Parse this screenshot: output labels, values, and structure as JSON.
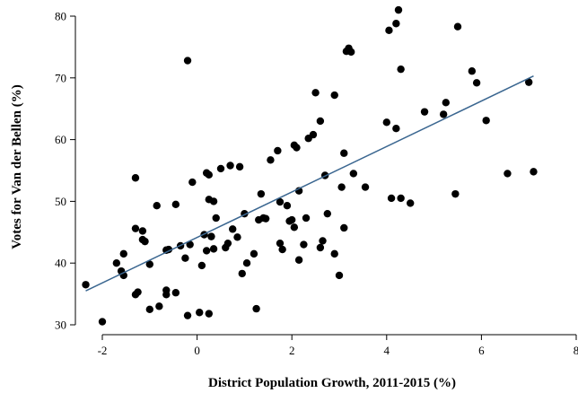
{
  "chart_data": {
    "type": "scatter",
    "xlabel": "District Population Growth, 2011-2015 (%)",
    "ylabel": "Votes for Van der Bellen (%)",
    "xlim": [
      -2.5,
      8
    ],
    "ylim": [
      30,
      81
    ],
    "xticks": [
      -2,
      0,
      2,
      4,
      6,
      8
    ],
    "yticks": [
      30,
      40,
      50,
      60,
      70,
      80
    ],
    "grid": false,
    "point_color": "#000000",
    "line_color": "#3a6690",
    "fit_line": {
      "x": [
        -2.35,
        7.1
      ],
      "y": [
        35.5,
        70.3
      ]
    },
    "points": [
      [
        -2.35,
        36.5
      ],
      [
        -2.0,
        30.5
      ],
      [
        -1.7,
        40.0
      ],
      [
        -1.6,
        38.7
      ],
      [
        -1.55,
        38.0
      ],
      [
        -1.55,
        41.5
      ],
      [
        -1.3,
        53.8
      ],
      [
        -1.3,
        45.6
      ],
      [
        -1.3,
        34.9
      ],
      [
        -1.25,
        35.3
      ],
      [
        -1.15,
        45.2
      ],
      [
        -1.15,
        43.8
      ],
      [
        -1.1,
        43.5
      ],
      [
        -1.0,
        32.5
      ],
      [
        -1.0,
        39.8
      ],
      [
        -0.85,
        49.3
      ],
      [
        -0.8,
        33.0
      ],
      [
        -0.65,
        42.1
      ],
      [
        -0.65,
        34.9
      ],
      [
        -0.65,
        35.6
      ],
      [
        -0.6,
        42.2
      ],
      [
        -0.45,
        49.5
      ],
      [
        -0.45,
        35.2
      ],
      [
        -0.35,
        42.8
      ],
      [
        -0.25,
        40.8
      ],
      [
        -0.2,
        72.8
      ],
      [
        -0.2,
        31.5
      ],
      [
        -0.15,
        43.0
      ],
      [
        -0.1,
        53.1
      ],
      [
        0.05,
        32.0
      ],
      [
        0.1,
        39.6
      ],
      [
        0.15,
        44.6
      ],
      [
        0.2,
        42.0
      ],
      [
        0.2,
        54.6
      ],
      [
        0.25,
        54.3
      ],
      [
        0.25,
        50.3
      ],
      [
        0.25,
        31.8
      ],
      [
        0.3,
        44.3
      ],
      [
        0.35,
        42.3
      ],
      [
        0.35,
        50.0
      ],
      [
        0.4,
        47.3
      ],
      [
        0.5,
        55.3
      ],
      [
        0.6,
        42.5
      ],
      [
        0.65,
        43.2
      ],
      [
        0.7,
        55.8
      ],
      [
        0.75,
        45.5
      ],
      [
        0.85,
        44.2
      ],
      [
        0.9,
        55.6
      ],
      [
        0.95,
        38.3
      ],
      [
        1.0,
        48.0
      ],
      [
        1.05,
        40.0
      ],
      [
        1.2,
        41.5
      ],
      [
        1.25,
        32.6
      ],
      [
        1.3,
        47.0
      ],
      [
        1.35,
        51.2
      ],
      [
        1.4,
        47.3
      ],
      [
        1.45,
        47.2
      ],
      [
        1.55,
        56.7
      ],
      [
        1.7,
        58.2
      ],
      [
        1.75,
        43.2
      ],
      [
        1.75,
        49.9
      ],
      [
        1.8,
        42.2
      ],
      [
        1.9,
        49.3
      ],
      [
        1.95,
        46.8
      ],
      [
        2.0,
        47.0
      ],
      [
        2.05,
        45.8
      ],
      [
        2.05,
        59.1
      ],
      [
        2.1,
        58.7
      ],
      [
        2.15,
        51.7
      ],
      [
        2.15,
        40.5
      ],
      [
        2.25,
        43.0
      ],
      [
        2.3,
        47.3
      ],
      [
        2.35,
        60.2
      ],
      [
        2.45,
        60.8
      ],
      [
        2.5,
        67.6
      ],
      [
        2.6,
        63.0
      ],
      [
        2.6,
        42.5
      ],
      [
        2.65,
        43.6
      ],
      [
        2.7,
        54.2
      ],
      [
        2.75,
        48.0
      ],
      [
        2.9,
        67.2
      ],
      [
        2.9,
        41.5
      ],
      [
        3.0,
        38.0
      ],
      [
        3.05,
        52.3
      ],
      [
        3.1,
        57.8
      ],
      [
        3.1,
        45.7
      ],
      [
        3.15,
        74.3
      ],
      [
        3.2,
        74.8
      ],
      [
        3.25,
        74.2
      ],
      [
        3.3,
        54.5
      ],
      [
        3.55,
        52.3
      ],
      [
        4.0,
        62.8
      ],
      [
        4.05,
        77.7
      ],
      [
        4.1,
        50.5
      ],
      [
        4.2,
        78.8
      ],
      [
        4.2,
        61.8
      ],
      [
        4.25,
        81.0
      ],
      [
        4.3,
        71.4
      ],
      [
        4.3,
        50.5
      ],
      [
        4.5,
        49.7
      ],
      [
        4.8,
        64.5
      ],
      [
        5.2,
        64.1
      ],
      [
        5.25,
        66.0
      ],
      [
        5.45,
        51.2
      ],
      [
        5.5,
        78.3
      ],
      [
        5.8,
        71.1
      ],
      [
        5.9,
        69.2
      ],
      [
        6.1,
        63.1
      ],
      [
        6.55,
        54.5
      ],
      [
        7.0,
        69.3
      ],
      [
        7.1,
        54.8
      ]
    ]
  }
}
